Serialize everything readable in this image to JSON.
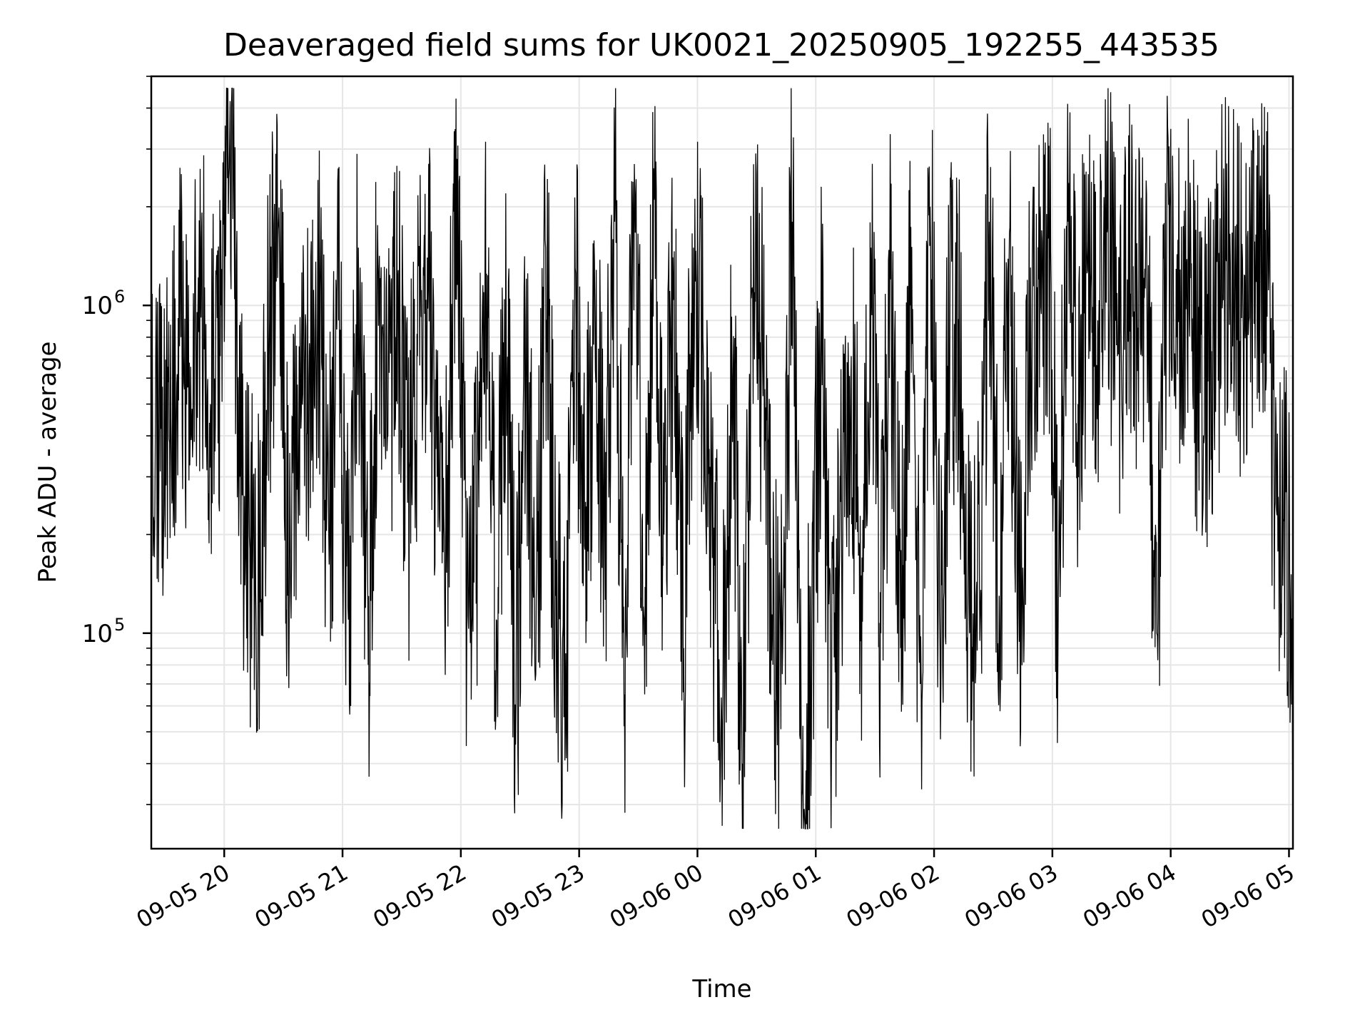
{
  "chart_data": {
    "type": "line",
    "title": "Deaveraged field sums for UK0021_20250905_192255_443535",
    "xlabel": "Time",
    "ylabel": "Peak ADU - average",
    "y_scale": "log",
    "ylim": [
      22000,
      5000000
    ],
    "xlim": [
      "2025-09-05 19:23",
      "2025-09-06 05:02"
    ],
    "grid": true,
    "legend": "none",
    "line_color": "#000000",
    "x_ticks": [
      {
        "value": "2025-09-05 20:00",
        "label": "09-05 20"
      },
      {
        "value": "2025-09-05 21:00",
        "label": "09-05 21"
      },
      {
        "value": "2025-09-05 22:00",
        "label": "09-05 22"
      },
      {
        "value": "2025-09-05 23:00",
        "label": "09-05 23"
      },
      {
        "value": "2025-09-06 00:00",
        "label": "09-06 00"
      },
      {
        "value": "2025-09-06 01:00",
        "label": "09-06 01"
      },
      {
        "value": "2025-09-06 02:00",
        "label": "09-06 02"
      },
      {
        "value": "2025-09-06 03:00",
        "label": "09-06 03"
      },
      {
        "value": "2025-09-06 04:00",
        "label": "09-06 04"
      },
      {
        "value": "2025-09-06 05:00",
        "label": "09-06 05"
      }
    ],
    "y_ticks": [
      {
        "value": 100000,
        "base": "10",
        "exp": "5"
      },
      {
        "value": 1000000,
        "base": "10",
        "exp": "6"
      }
    ],
    "series": [
      {
        "x": [
          "2025-09-05 19:23",
          "2025-09-05 19:28",
          "2025-09-05 19:33",
          "2025-09-05 19:38",
          "2025-09-05 19:43",
          "2025-09-05 19:48",
          "2025-09-05 19:53",
          "2025-09-05 19:58",
          "2025-09-05 20:03",
          "2025-09-05 20:08",
          "2025-09-05 20:13",
          "2025-09-05 20:18",
          "2025-09-05 20:23",
          "2025-09-05 20:28",
          "2025-09-05 20:33",
          "2025-09-05 20:38",
          "2025-09-05 20:43",
          "2025-09-05 20:48",
          "2025-09-05 20:53",
          "2025-09-05 20:58",
          "2025-09-05 21:03",
          "2025-09-05 21:08",
          "2025-09-05 21:13",
          "2025-09-05 21:18",
          "2025-09-05 21:23",
          "2025-09-05 21:28",
          "2025-09-05 21:33",
          "2025-09-05 21:38",
          "2025-09-05 21:43",
          "2025-09-05 21:48",
          "2025-09-05 21:53",
          "2025-09-05 21:58",
          "2025-09-05 22:03",
          "2025-09-05 22:08",
          "2025-09-05 22:13",
          "2025-09-05 22:18",
          "2025-09-05 22:23",
          "2025-09-05 22:28",
          "2025-09-05 22:33",
          "2025-09-05 22:38",
          "2025-09-05 22:43",
          "2025-09-05 22:48",
          "2025-09-05 22:53",
          "2025-09-05 22:58",
          "2025-09-05 23:03",
          "2025-09-05 23:08",
          "2025-09-05 23:13",
          "2025-09-05 23:18",
          "2025-09-05 23:23",
          "2025-09-05 23:28",
          "2025-09-05 23:33",
          "2025-09-05 23:38",
          "2025-09-05 23:43",
          "2025-09-05 23:48",
          "2025-09-05 23:53",
          "2025-09-05 23:58",
          "2025-09-06 00:03",
          "2025-09-06 00:08",
          "2025-09-06 00:13",
          "2025-09-06 00:18",
          "2025-09-06 00:23",
          "2025-09-06 00:28",
          "2025-09-06 00:33",
          "2025-09-06 00:38",
          "2025-09-06 00:43",
          "2025-09-06 00:48",
          "2025-09-06 00:53",
          "2025-09-06 00:58",
          "2025-09-06 01:03",
          "2025-09-06 01:08",
          "2025-09-06 01:13",
          "2025-09-06 01:18",
          "2025-09-06 01:23",
          "2025-09-06 01:28",
          "2025-09-06 01:33",
          "2025-09-06 01:38",
          "2025-09-06 01:43",
          "2025-09-06 01:48",
          "2025-09-06 01:53",
          "2025-09-06 01:58",
          "2025-09-06 02:03",
          "2025-09-06 02:08",
          "2025-09-06 02:13",
          "2025-09-06 02:18",
          "2025-09-06 02:23",
          "2025-09-06 02:28",
          "2025-09-06 02:33",
          "2025-09-06 02:38",
          "2025-09-06 02:43",
          "2025-09-06 02:48",
          "2025-09-06 02:53",
          "2025-09-06 02:58",
          "2025-09-06 03:03",
          "2025-09-06 03:08",
          "2025-09-06 03:13",
          "2025-09-06 03:18",
          "2025-09-06 03:23",
          "2025-09-06 03:28",
          "2025-09-06 03:33",
          "2025-09-06 03:38",
          "2025-09-06 03:43",
          "2025-09-06 03:48",
          "2025-09-06 03:53",
          "2025-09-06 03:58",
          "2025-09-06 04:03",
          "2025-09-06 04:08",
          "2025-09-06 04:13",
          "2025-09-06 04:18",
          "2025-09-06 04:23",
          "2025-09-06 04:28",
          "2025-09-06 04:33",
          "2025-09-06 04:38",
          "2025-09-06 04:43",
          "2025-09-06 04:48",
          "2025-09-06 04:53",
          "2025-09-06 04:58",
          "2025-09-06 05:02"
        ],
        "y": [
          300000,
          420000,
          450000,
          800000,
          650000,
          1100000,
          500000,
          700000,
          4200000,
          300000,
          180000,
          150000,
          900000,
          1600000,
          120000,
          750000,
          600000,
          1000000,
          200000,
          900000,
          110000,
          1500000,
          80000,
          1300000,
          400000,
          1200000,
          250000,
          700000,
          1400000,
          300000,
          220000,
          2800000,
          90000,
          200000,
          1250000,
          110000,
          850000,
          60000,
          900000,
          75000,
          1500000,
          130000,
          60000,
          1300000,
          180000,
          950000,
          200000,
          1800000,
          65000,
          2700000,
          110000,
          2100000,
          200000,
          1100000,
          90000,
          1500000,
          700000,
          150000,
          80000,
          600000,
          40000,
          1100000,
          700000,
          110000,
          75000,
          1800000,
          32000,
          100000,
          900000,
          50000,
          250000,
          700000,
          150000,
          1500000,
          100000,
          1200000,
          90000,
          1000000,
          70000,
          2000000,
          90000,
          800000,
          700000,
          100000,
          150000,
          1800000,
          130000,
          1300000,
          120000,
          600000,
          1200000,
          1600000,
          130000,
          1800000,
          500000,
          1500000,
          900000,
          1800000,
          700000,
          1200000,
          1100000,
          900000,
          100000,
          1500000,
          800000,
          1300000,
          700000,
          600000,
          900000,
          1400000,
          1100000,
          900000,
          1200000,
          1700000,
          250000,
          200000,
          100000
        ]
      }
    ]
  }
}
